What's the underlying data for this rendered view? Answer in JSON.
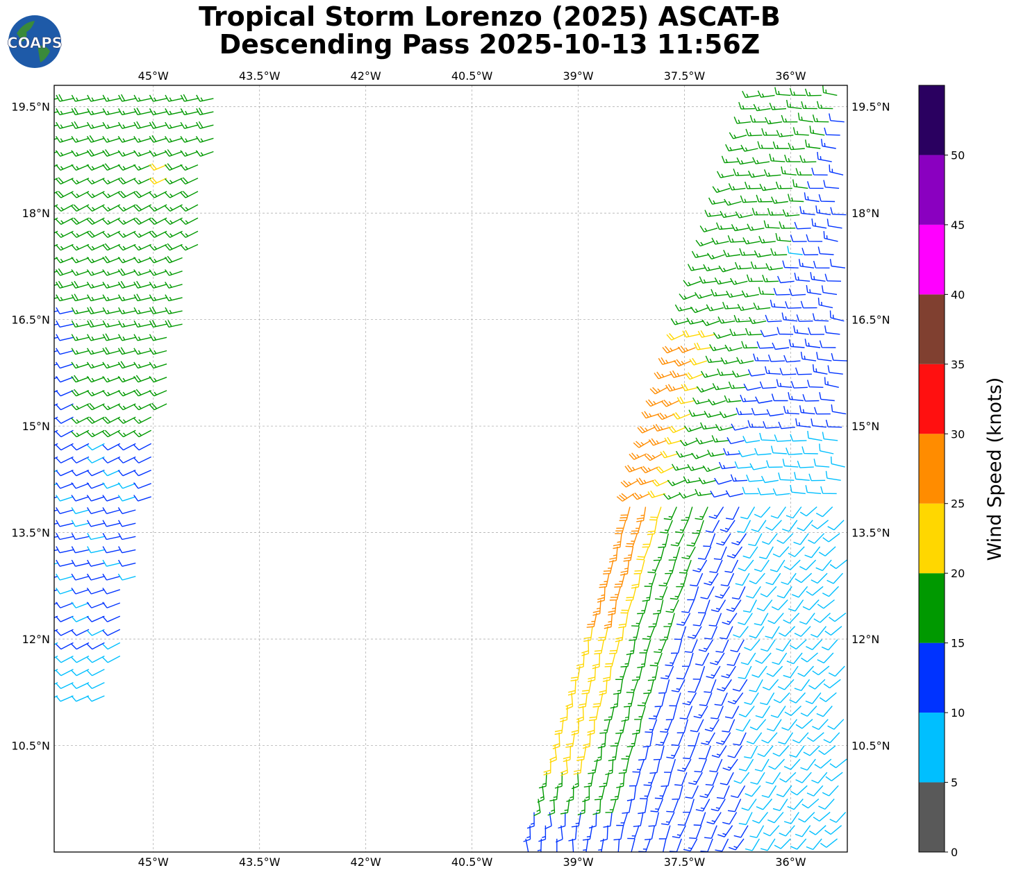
{
  "title": {
    "line1": "Tropical Storm Lorenzo (2025) ASCAT-B",
    "line2": "Descending Pass 2025-10-13 11:56Z"
  },
  "logo": {
    "text": "COAPS",
    "icon": "globe-icon"
  },
  "map": {
    "lon_ticks": [
      "45°W",
      "43.5°W",
      "42°W",
      "40.5°W",
      "39°W",
      "37.5°W",
      "36°W"
    ],
    "lat_ticks": [
      "19.5°N",
      "18°N",
      "16.5°N",
      "15°N",
      "13.5°N",
      "12°N",
      "10.5°N"
    ],
    "lon_range": [
      -46.4,
      -35.2
    ],
    "lat_range": [
      9.0,
      19.8
    ],
    "grid": true
  },
  "colorbar": {
    "label": "Wind Speed (knots)",
    "ticks": [
      "0",
      "5",
      "10",
      "15",
      "20",
      "25",
      "30",
      "35",
      "40",
      "45",
      "50"
    ],
    "colors": [
      "#595959",
      "#00bfff",
      "#0033ff",
      "#009900",
      "#ffd700",
      "#ff8c00",
      "#ff1010",
      "#804030",
      "#ff00ff",
      "#8a00c0",
      "#2a0060"
    ]
  },
  "chart_data": {
    "type": "wind_barbs",
    "title": "Tropical Storm Lorenzo (2025) ASCAT-B Descending Pass 2025-10-13 11:56Z",
    "units": "knots",
    "swaths": [
      {
        "name": "west",
        "lon_range": [
          -46.4,
          -44.2
        ],
        "lat_range": [
          11.2,
          19.8
        ],
        "speed_range_kt": [
          5,
          22
        ]
      },
      {
        "name": "east",
        "lon_range": [
          -39.8,
          -35.2
        ],
        "lat_range": [
          9.0,
          19.8
        ],
        "speed_range_kt": [
          5,
          30
        ]
      }
    ],
    "center_of_max_winds_approx": {
      "lon": -38.4,
      "lat": 14.0,
      "speed_kt": 27
    }
  }
}
